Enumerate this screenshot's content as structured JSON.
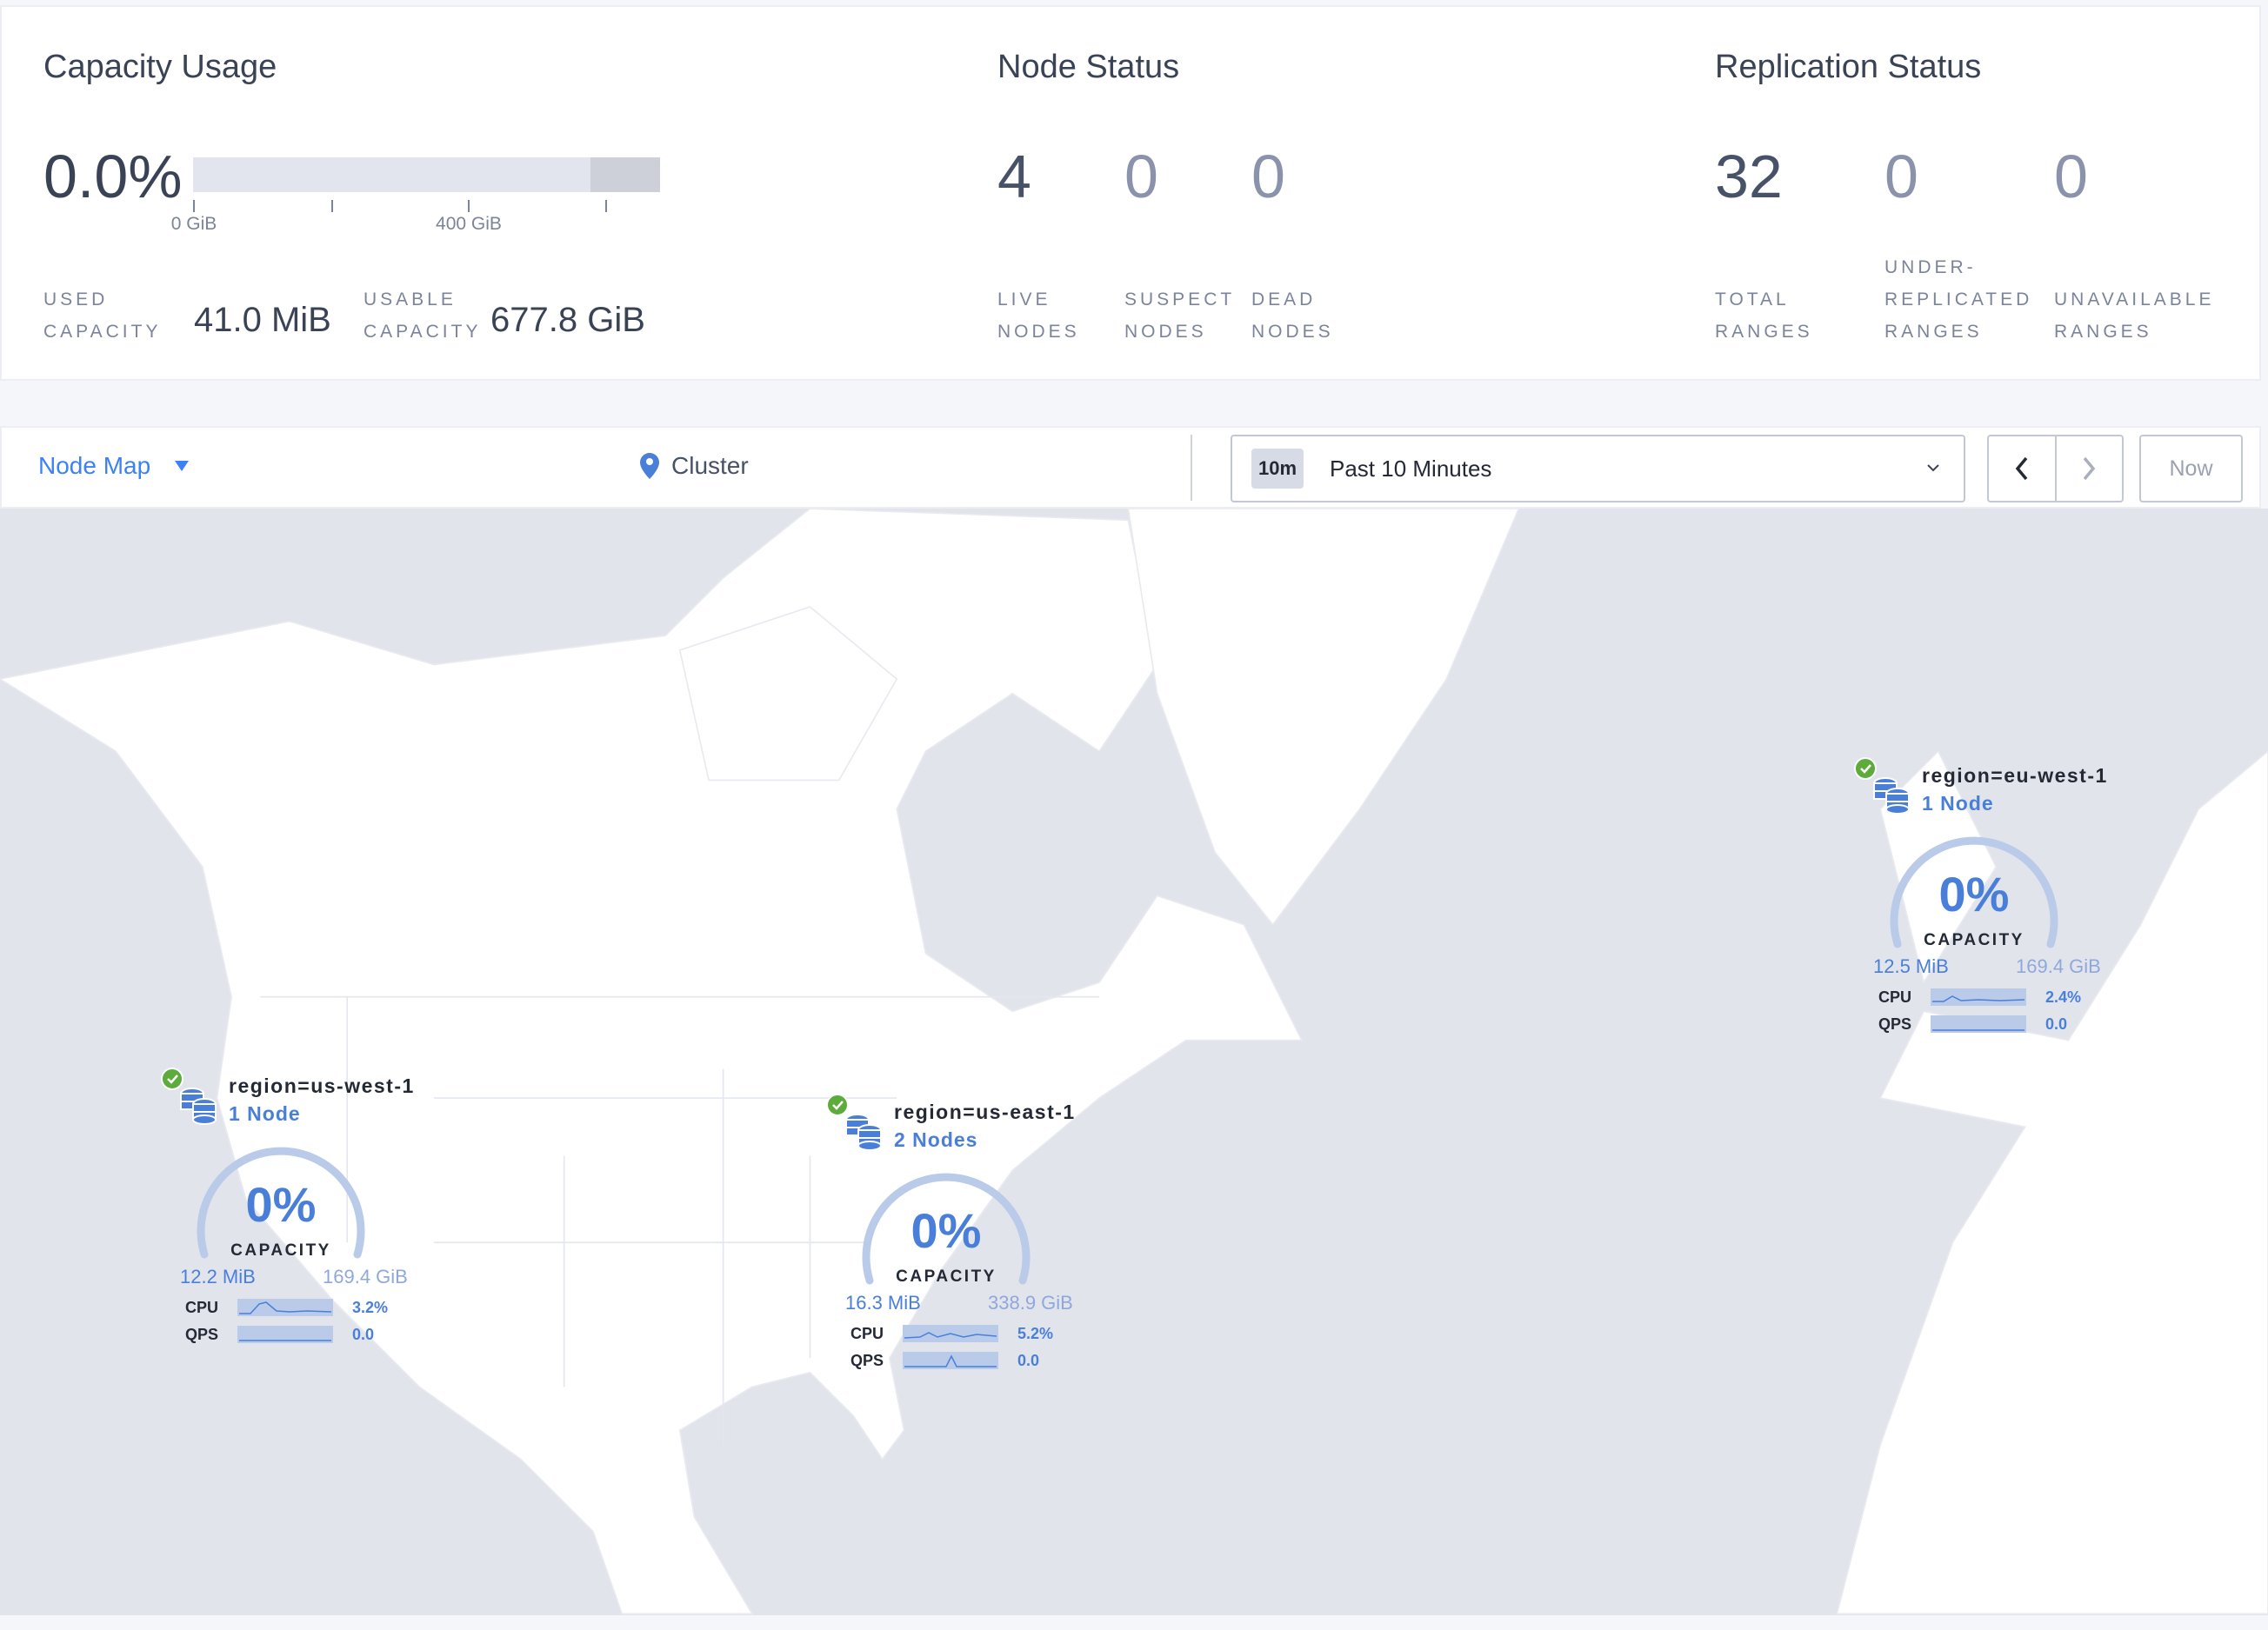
{
  "capacity": {
    "title": "Capacity Usage",
    "percent": "0.0%",
    "ticks": [
      "0 GiB",
      "400 GiB"
    ],
    "used_label": [
      "USED",
      "CAPACITY"
    ],
    "used_value": "41.0 MiB",
    "usable_label": [
      "USABLE",
      "CAPACITY"
    ],
    "usable_value": "677.8 GiB"
  },
  "node_status": {
    "title": "Node Status",
    "stats": [
      {
        "value": "4",
        "label": [
          "LIVE",
          "NODES"
        ]
      },
      {
        "value": "0",
        "label": [
          "SUSPECT",
          "NODES"
        ]
      },
      {
        "value": "0",
        "label": [
          "DEAD",
          "NODES"
        ]
      }
    ]
  },
  "replication": {
    "title": "Replication Status",
    "stats": [
      {
        "value": "32",
        "label": [
          "TOTAL",
          "RANGES"
        ]
      },
      {
        "value": "0",
        "label": [
          "UNDER-",
          "REPLICATED",
          "RANGES"
        ]
      },
      {
        "value": "0",
        "label": [
          "UNAVAILABLE",
          "RANGES"
        ]
      }
    ]
  },
  "toolbar": {
    "view": "Node Map",
    "breadcrumb": "Cluster",
    "time_badge": "10m",
    "time_range": "Past 10 Minutes",
    "now": "Now"
  },
  "colors": {
    "accent": "#4a7fd9",
    "healthy": "#5dab3a",
    "land": "#ffffff",
    "water": "#e2e4ec"
  },
  "clusters": [
    {
      "name": "region=us-west-1",
      "nodes": "1 Node",
      "capacity_pct": "0%",
      "capacity_label": "CAPACITY",
      "used": "12.2 MiB",
      "total": "169.4 GiB",
      "cpu_label": "CPU",
      "cpu": "3.2%",
      "qps_label": "QPS",
      "qps": "0.0"
    },
    {
      "name": "region=us-east-1",
      "nodes": "2 Nodes",
      "capacity_pct": "0%",
      "capacity_label": "CAPACITY",
      "used": "16.3 MiB",
      "total": "338.9 GiB",
      "cpu_label": "CPU",
      "cpu": "5.2%",
      "qps_label": "QPS",
      "qps": "0.0"
    },
    {
      "name": "region=eu-west-1",
      "nodes": "1 Node",
      "capacity_pct": "0%",
      "capacity_label": "CAPACITY",
      "used": "12.5 MiB",
      "total": "169.4 GiB",
      "cpu_label": "CPU",
      "cpu": "2.4%",
      "qps_label": "QPS",
      "qps": "0.0"
    }
  ]
}
